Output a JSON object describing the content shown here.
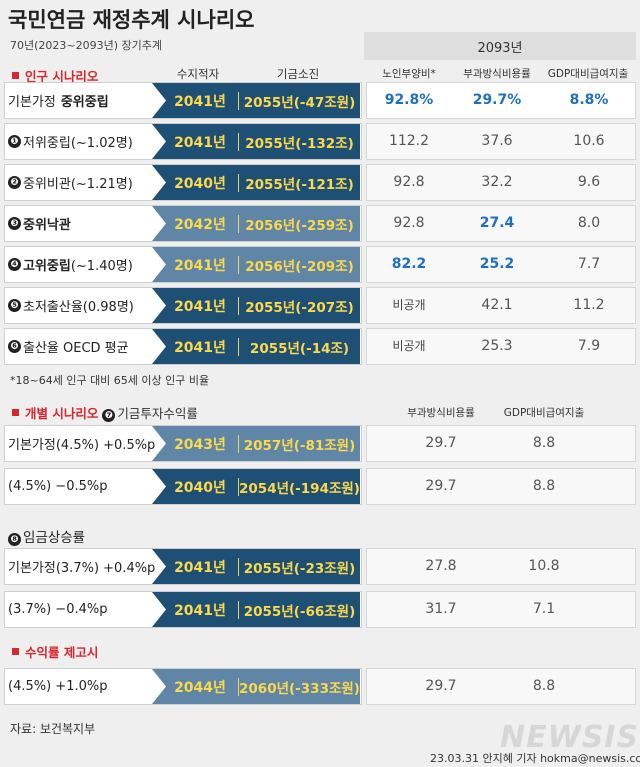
{
  "header": {
    "title": "국민연금 재정추계 시나리오",
    "subtitle": "70년(2023~2093년) 장기추계",
    "year_label": "2093년"
  },
  "colors": {
    "banner_dark": "#1e4f75",
    "banner_light": "#5f86a6",
    "year_text": "#fcd84a",
    "highlight_blue": "#1f6fc1",
    "section_red": "#d8262e"
  },
  "sections": {
    "population": {
      "label": "인구 시나리오",
      "col_balance": "수지적자",
      "col_depletion": "기금소진",
      "col_old_age": "노인부양비*",
      "col_paygo": "부과방식비용률",
      "col_gdp": "GDP대비급여지출"
    },
    "individual": {
      "label": "개별 시나리오",
      "badge": "❼",
      "extra": "기금투자수익률",
      "col_paygo": "부과방식비용률",
      "col_gdp": "GDP대비급여지출"
    },
    "wage": {
      "badge": "❽",
      "label": "임금상승률"
    },
    "return_up": {
      "label": "수익률 제고시"
    }
  },
  "footnote": "*18~64세 인구 대비 65세 이상 인구 비율",
  "source": "자료: 보건복지부",
  "credit": "23.03.31 안지혜 기자 hokma@newsis.com",
  "logo": "NEWSIS",
  "chart_data": {
    "type": "table",
    "title": "국민연금 재정추계 시나리오",
    "columns": [
      "시나리오",
      "수지적자",
      "기금소진",
      "노인부양비",
      "부과방식비용률",
      "GDP대비급여지출"
    ],
    "population_rows": [
      {
        "badge": "",
        "label": "기본가정",
        "bold": "중위중립",
        "deficit": "2041년",
        "depletion": "2055년(-47조원)",
        "old_age": "92.8%",
        "paygo": "29.7%",
        "gdp": "8.8%",
        "emph": true,
        "banner": "dark"
      },
      {
        "badge": "❶",
        "label": "저위중립(~1.02명)",
        "bold": "",
        "deficit": "2041년",
        "depletion": "2055년(-132조)",
        "old_age": "112.2",
        "paygo": "37.6",
        "gdp": "10.6",
        "emph": false,
        "banner": "dark"
      },
      {
        "badge": "❷",
        "label": "중위비관(~1.21명)",
        "bold": "",
        "deficit": "2040년",
        "depletion": "2055년(-121조)",
        "old_age": "92.8",
        "paygo": "32.2",
        "gdp": "9.6",
        "emph": false,
        "banner": "dark"
      },
      {
        "badge": "❸",
        "label": "",
        "bold": "중위낙관",
        "deficit": "2042년",
        "depletion": "2056년(-259조)",
        "old_age": "92.8",
        "paygo": "27.4",
        "gdp": "8.0",
        "emph": false,
        "banner": "light"
      },
      {
        "badge": "❹",
        "label": "(~1.40명)",
        "bold": "고위중립",
        "deficit": "2041년",
        "depletion": "2056년(-209조)",
        "old_age": "82.2",
        "paygo": "25.2",
        "gdp": "7.7",
        "emph": false,
        "banner": "light"
      },
      {
        "badge": "❺",
        "label": "초저출산율(0.98명)",
        "bold": "",
        "deficit": "2041년",
        "depletion": "2055년(-207조)",
        "old_age": "비공개",
        "paygo": "42.1",
        "gdp": "11.2",
        "emph": false,
        "banner": "dark"
      },
      {
        "badge": "❻",
        "label": "출산율 OECD 평균",
        "bold": "",
        "deficit": "2041년",
        "depletion": "2055년(-14조)",
        "old_age": "비공개",
        "paygo": "25.3",
        "gdp": "7.9",
        "emph": false,
        "banner": "dark"
      }
    ],
    "investment_rows": [
      {
        "label": "기본가정(4.5%) +0.5%p",
        "deficit": "2043년",
        "depletion": "2057년(-81조원)",
        "paygo": "29.7",
        "gdp": "8.8",
        "banner": "light"
      },
      {
        "label": "(4.5%) −0.5%p",
        "deficit": "2040년",
        "depletion": "2054년(-194조원)",
        "paygo": "29.7",
        "gdp": "8.8",
        "banner": "dark"
      }
    ],
    "wage_rows": [
      {
        "label": "기본가정(3.7%) +0.4%p",
        "deficit": "2041년",
        "depletion": "2055년(-23조원)",
        "paygo": "27.8",
        "gdp": "10.8",
        "banner": "dark"
      },
      {
        "label": "(3.7%) −0.4%p",
        "deficit": "2041년",
        "depletion": "2055년(-66조원)",
        "paygo": "31.7",
        "gdp": "7.1",
        "banner": "dark"
      }
    ],
    "return_rows": [
      {
        "label": "(4.5%) +1.0%p",
        "deficit": "2044년",
        "depletion": "2060년(-333조원)",
        "paygo": "29.7",
        "gdp": "8.8",
        "banner": "light"
      }
    ]
  }
}
